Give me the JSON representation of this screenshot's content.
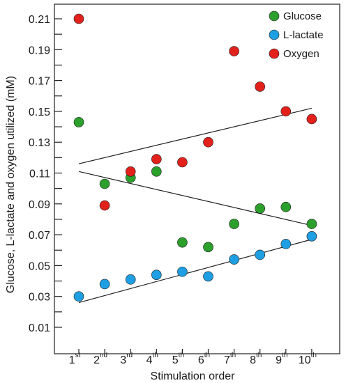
{
  "chart_data": {
    "type": "scatter",
    "title": "",
    "xlabel": "Stimulation order",
    "ylabel": "Glucose, L-lactate and oxygen utilized (mM)",
    "ylim": [
      0.0,
      0.22
    ],
    "yticks": [
      "0.01",
      "0.03",
      "0.05",
      "0.07",
      "0.09",
      "0.11",
      "0.13",
      "0.15",
      "0.17",
      "0.19",
      "0.21"
    ],
    "categories": [
      {
        "base": "1",
        "sup": "st"
      },
      {
        "base": "2",
        "sup": "nd"
      },
      {
        "base": "3",
        "sup": "rd"
      },
      {
        "base": "4",
        "sup": "th"
      },
      {
        "base": "5",
        "sup": "th"
      },
      {
        "base": "6",
        "sup": "th"
      },
      {
        "base": "7",
        "sup": "th"
      },
      {
        "base": "8",
        "sup": "th"
      },
      {
        "base": "9",
        "sup": "th"
      },
      {
        "base": "10",
        "sup": "th"
      }
    ],
    "legend_position": "top-right",
    "grid": false,
    "series": [
      {
        "name": "Glucose",
        "color": "#2ca02c",
        "values": [
          0.143,
          0.103,
          0.107,
          0.111,
          0.065,
          0.062,
          0.077,
          0.087,
          0.088,
          0.077
        ]
      },
      {
        "name": "L-lactate",
        "color": "#1e9fe3",
        "values": [
          0.03,
          0.038,
          0.041,
          0.044,
          0.046,
          0.043,
          0.054,
          0.057,
          0.064,
          0.069
        ]
      },
      {
        "name": "Oxygen",
        "color": "#e3211c",
        "values": [
          0.21,
          0.089,
          0.111,
          0.119,
          0.117,
          0.13,
          0.189,
          0.166,
          0.15,
          0.145
        ]
      }
    ],
    "trendlines": [
      {
        "series": "Oxygen",
        "from": [
          1,
          0.116
        ],
        "to": [
          10,
          0.152
        ]
      },
      {
        "series": "Glucose",
        "from": [
          1,
          0.111
        ],
        "to": [
          10,
          0.076
        ]
      },
      {
        "series": "L-lactate",
        "from": [
          1,
          0.026
        ],
        "to": [
          10,
          0.067
        ]
      }
    ]
  }
}
